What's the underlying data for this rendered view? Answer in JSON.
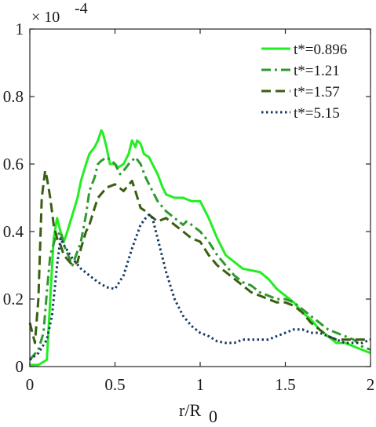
{
  "chart_data": {
    "type": "line",
    "xlabel": "r/R",
    "xlabel_subscript": "0",
    "ylabel": "",
    "scale_base": "× 10",
    "scale_exponent": "-4",
    "xlim": [
      0,
      2
    ],
    "ylim": [
      0,
      1
    ],
    "x_ticks": [
      0,
      0.5,
      1,
      1.5,
      2
    ],
    "x_tick_labels": [
      "0",
      "0.5",
      "1",
      "1.5",
      "2"
    ],
    "y_ticks": [
      0,
      0.2,
      0.4,
      0.6,
      0.8,
      1
    ],
    "y_tick_labels": [
      "0",
      "0.2",
      "0.4",
      "0.6",
      "0.8",
      "1"
    ],
    "grid": false,
    "legend_position": "top-right",
    "series": [
      {
        "name": "t*=0.896",
        "color": "#22ee22",
        "style": "solid",
        "x": [
          0,
          0.05,
          0.1,
          0.12,
          0.14,
          0.16,
          0.18,
          0.2,
          0.22,
          0.25,
          0.28,
          0.3,
          0.33,
          0.35,
          0.38,
          0.4,
          0.42,
          0.43,
          0.45,
          0.47,
          0.5,
          0.52,
          0.55,
          0.58,
          0.6,
          0.62,
          0.63,
          0.65,
          0.67,
          0.7,
          0.72,
          0.75,
          0.78,
          0.8,
          0.85,
          0.9,
          0.95,
          1.0,
          1.05,
          1.1,
          1.15,
          1.2,
          1.25,
          1.3,
          1.35,
          1.4,
          1.45,
          1.5,
          1.55,
          1.6,
          1.65,
          1.7,
          1.75,
          1.8,
          1.85,
          1.9,
          1.95,
          2.0
        ],
        "y": [
          0.005,
          0.005,
          0.02,
          0.2,
          0.38,
          0.44,
          0.4,
          0.37,
          0.4,
          0.45,
          0.5,
          0.55,
          0.6,
          0.63,
          0.65,
          0.67,
          0.7,
          0.69,
          0.65,
          0.6,
          0.6,
          0.59,
          0.6,
          0.63,
          0.67,
          0.65,
          0.67,
          0.66,
          0.63,
          0.62,
          0.6,
          0.57,
          0.53,
          0.51,
          0.5,
          0.5,
          0.49,
          0.49,
          0.44,
          0.38,
          0.33,
          0.31,
          0.29,
          0.285,
          0.28,
          0.26,
          0.23,
          0.21,
          0.19,
          0.16,
          0.14,
          0.11,
          0.09,
          0.07,
          0.07,
          0.06,
          0.05,
          0.04
        ]
      },
      {
        "name": "t*=1.21",
        "color": "#2e9a2e",
        "style": "dashdot",
        "x": [
          0,
          0.05,
          0.08,
          0.1,
          0.12,
          0.15,
          0.18,
          0.2,
          0.25,
          0.3,
          0.33,
          0.35,
          0.38,
          0.4,
          0.42,
          0.45,
          0.48,
          0.5,
          0.53,
          0.55,
          0.58,
          0.6,
          0.62,
          0.65,
          0.68,
          0.7,
          0.72,
          0.75,
          0.8,
          0.85,
          0.9,
          0.92,
          0.95,
          1.0,
          1.05,
          1.1,
          1.15,
          1.2,
          1.25,
          1.3,
          1.35,
          1.4,
          1.45,
          1.5,
          1.55,
          1.6,
          1.65,
          1.7,
          1.75,
          1.8,
          1.85,
          1.9,
          1.95,
          2.0
        ],
        "y": [
          0.02,
          0.05,
          0.1,
          0.22,
          0.33,
          0.38,
          0.4,
          0.36,
          0.3,
          0.37,
          0.45,
          0.52,
          0.56,
          0.6,
          0.61,
          0.62,
          0.61,
          0.6,
          0.57,
          0.58,
          0.6,
          0.61,
          0.62,
          0.6,
          0.56,
          0.54,
          0.52,
          0.49,
          0.46,
          0.44,
          0.42,
          0.43,
          0.42,
          0.4,
          0.37,
          0.33,
          0.3,
          0.27,
          0.25,
          0.24,
          0.22,
          0.21,
          0.2,
          0.2,
          0.19,
          0.17,
          0.15,
          0.13,
          0.11,
          0.1,
          0.09,
          0.08,
          0.06,
          0.05
        ]
      },
      {
        "name": "t*=1.57",
        "color": "#3a5e12",
        "style": "dashed",
        "x": [
          0,
          0.03,
          0.05,
          0.07,
          0.09,
          0.1,
          0.12,
          0.14,
          0.16,
          0.18,
          0.2,
          0.25,
          0.28,
          0.3,
          0.33,
          0.35,
          0.38,
          0.4,
          0.45,
          0.5,
          0.55,
          0.6,
          0.62,
          0.65,
          0.68,
          0.7,
          0.75,
          0.8,
          0.85,
          0.9,
          0.95,
          1.0,
          1.05,
          1.1,
          1.15,
          1.2,
          1.25,
          1.3,
          1.35,
          1.4,
          1.45,
          1.5,
          1.55,
          1.6,
          1.65,
          1.7,
          1.75,
          1.8,
          1.85,
          1.9,
          1.95,
          2.0
        ],
        "y": [
          0.13,
          0.07,
          0.2,
          0.5,
          0.58,
          0.56,
          0.5,
          0.42,
          0.38,
          0.36,
          0.33,
          0.3,
          0.31,
          0.35,
          0.4,
          0.42,
          0.47,
          0.5,
          0.53,
          0.54,
          0.52,
          0.55,
          0.52,
          0.47,
          0.46,
          0.45,
          0.43,
          0.44,
          0.42,
          0.4,
          0.38,
          0.37,
          0.33,
          0.3,
          0.28,
          0.26,
          0.24,
          0.22,
          0.21,
          0.2,
          0.19,
          0.19,
          0.18,
          0.16,
          0.13,
          0.11,
          0.09,
          0.08,
          0.08,
          0.08,
          0.08,
          0.08
        ]
      },
      {
        "name": "t*=5.15",
        "color": "#163a64",
        "style": "dotted",
        "x": [
          0,
          0.05,
          0.1,
          0.13,
          0.16,
          0.18,
          0.2,
          0.25,
          0.3,
          0.35,
          0.4,
          0.45,
          0.5,
          0.55,
          0.6,
          0.65,
          0.68,
          0.7,
          0.72,
          0.75,
          0.8,
          0.85,
          0.9,
          0.95,
          1.0,
          1.05,
          1.1,
          1.15,
          1.2,
          1.25,
          1.3,
          1.35,
          1.4,
          1.45,
          1.5,
          1.55,
          1.6,
          1.65,
          1.7,
          1.75,
          1.8,
          1.85,
          1.9,
          1.95,
          2.0
        ],
        "y": [
          0.02,
          0.04,
          0.08,
          0.15,
          0.3,
          0.38,
          0.36,
          0.32,
          0.29,
          0.27,
          0.25,
          0.235,
          0.23,
          0.27,
          0.35,
          0.42,
          0.44,
          0.45,
          0.44,
          0.38,
          0.28,
          0.2,
          0.15,
          0.12,
          0.1,
          0.09,
          0.075,
          0.07,
          0.07,
          0.08,
          0.08,
          0.08,
          0.08,
          0.09,
          0.1,
          0.11,
          0.11,
          0.1,
          0.1,
          0.09,
          0.08,
          0.07,
          0.07,
          0.07,
          0.08
        ]
      }
    ]
  }
}
